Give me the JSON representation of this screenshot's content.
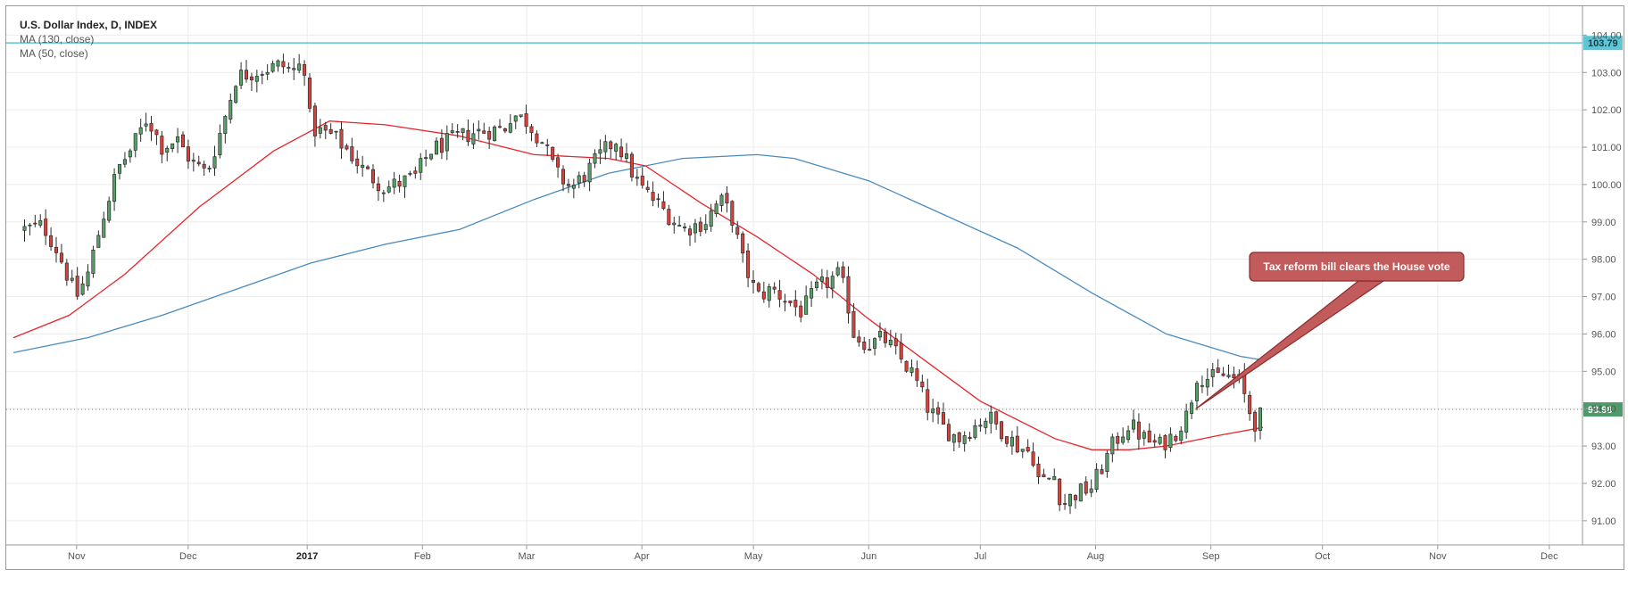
{
  "chart_data": {
    "type": "candlestick",
    "title": "U.S. Dollar Index, D, INDEX",
    "ylim": [
      90.4,
      104.2
    ],
    "y_ticks": [
      91.0,
      92.0,
      93.0,
      94.0,
      95.0,
      96.0,
      97.0,
      98.0,
      99.0,
      100.0,
      101.0,
      102.0,
      103.0,
      104.0
    ],
    "x_ticks": [
      {
        "label": "Nov",
        "day": 17,
        "bold": false
      },
      {
        "label": "Dec",
        "day": 47,
        "bold": false
      },
      {
        "label": "2017",
        "day": 79,
        "bold": true
      },
      {
        "label": "Feb",
        "day": 110,
        "bold": false
      },
      {
        "label": "Mar",
        "day": 138,
        "bold": false
      },
      {
        "label": "Apr",
        "day": 169,
        "bold": false
      },
      {
        "label": "May",
        "day": 199,
        "bold": false
      },
      {
        "label": "Jun",
        "day": 230,
        "bold": false
      },
      {
        "label": "Jul",
        "day": 260,
        "bold": false
      },
      {
        "label": "Aug",
        "day": 291,
        "bold": false
      },
      {
        "label": "Sep",
        "day": 322,
        "bold": false
      },
      {
        "label": "Oct",
        "day": 352,
        "bold": false
      },
      {
        "label": "Nov",
        "day": 383,
        "bold": false
      },
      {
        "label": "Dec",
        "day": 413,
        "bold": false
      }
    ],
    "x_range_days": [
      0,
      420
    ],
    "candle_path": [
      [
        3,
        98.8
      ],
      [
        8,
        98.9
      ],
      [
        12,
        98.2
      ],
      [
        16,
        97.2
      ],
      [
        17,
        97.0
      ],
      [
        20,
        97.6
      ],
      [
        24,
        99.1
      ],
      [
        28,
        100.4
      ],
      [
        32,
        101.0
      ],
      [
        36,
        101.8
      ],
      [
        40,
        101.0
      ],
      [
        44,
        101.2
      ],
      [
        48,
        100.6
      ],
      [
        52,
        100.3
      ],
      [
        56,
        101.5
      ],
      [
        60,
        102.9
      ],
      [
        64,
        103.0
      ],
      [
        68,
        103.1
      ],
      [
        72,
        103.2
      ],
      [
        76,
        103.0
      ],
      [
        78,
        103.4
      ],
      [
        80,
        101.5
      ],
      [
        86,
        101.3
      ],
      [
        90,
        100.9
      ],
      [
        94,
        100.4
      ],
      [
        100,
        99.9
      ],
      [
        108,
        100.2
      ],
      [
        112,
        100.9
      ],
      [
        118,
        101.2
      ],
      [
        124,
        101.4
      ],
      [
        132,
        101.5
      ],
      [
        134,
        101.9
      ],
      [
        138,
        101.7
      ],
      [
        142,
        101.2
      ],
      [
        146,
        100.3
      ],
      [
        150,
        99.9
      ],
      [
        154,
        100.3
      ],
      [
        158,
        100.8
      ],
      [
        162,
        101.2
      ],
      [
        165,
        100.6
      ],
      [
        168,
        100.0
      ],
      [
        172,
        99.6
      ],
      [
        176,
        99.2
      ],
      [
        180,
        98.8
      ],
      [
        186,
        99.0
      ],
      [
        190,
        99.6
      ],
      [
        193,
        99.2
      ],
      [
        196,
        98.0
      ],
      [
        200,
        97.0
      ],
      [
        204,
        97.2
      ],
      [
        208,
        96.9
      ],
      [
        212,
        96.6
      ],
      [
        216,
        97.2
      ],
      [
        222,
        97.6
      ],
      [
        224,
        97.0
      ],
      [
        226,
        96.0
      ],
      [
        230,
        95.7
      ],
      [
        234,
        95.9
      ],
      [
        238,
        95.4
      ],
      [
        242,
        94.9
      ],
      [
        246,
        94.0
      ],
      [
        250,
        93.5
      ],
      [
        254,
        93.2
      ],
      [
        258,
        93.5
      ],
      [
        262,
        93.8
      ],
      [
        266,
        93.4
      ],
      [
        270,
        93.0
      ],
      [
        274,
        92.8
      ],
      [
        276,
        92.0
      ],
      [
        280,
        92.2
      ],
      [
        282,
        91.4
      ],
      [
        285,
        91.7
      ],
      [
        290,
        91.9
      ],
      [
        293,
        92.5
      ],
      [
        296,
        93.1
      ],
      [
        300,
        93.6
      ],
      [
        304,
        93.2
      ],
      [
        308,
        93.0
      ],
      [
        312,
        93.3
      ],
      [
        316,
        93.9
      ],
      [
        318,
        94.9
      ],
      [
        322,
        94.8
      ],
      [
        326,
        94.9
      ],
      [
        330,
        94.7
      ],
      [
        332,
        94.0
      ],
      [
        334,
        93.6
      ],
      [
        336,
        93.9
      ]
    ],
    "ma_130": {
      "name": "MA (130, close)",
      "color": "#4a8bbf",
      "points": [
        [
          0,
          95.5
        ],
        [
          20,
          95.9
        ],
        [
          40,
          96.5
        ],
        [
          60,
          97.2
        ],
        [
          80,
          97.9
        ],
        [
          100,
          98.4
        ],
        [
          120,
          98.8
        ],
        [
          140,
          99.6
        ],
        [
          160,
          100.3
        ],
        [
          180,
          100.7
        ],
        [
          200,
          100.8
        ],
        [
          210,
          100.7
        ],
        [
          230,
          100.1
        ],
        [
          250,
          99.2
        ],
        [
          270,
          98.3
        ],
        [
          290,
          97.1
        ],
        [
          310,
          96.0
        ],
        [
          330,
          95.4
        ],
        [
          336,
          95.3
        ]
      ]
    },
    "ma_50": {
      "name": "MA (50, close)",
      "color": "#e8252b",
      "points": [
        [
          0,
          95.9
        ],
        [
          15,
          96.5
        ],
        [
          30,
          97.6
        ],
        [
          50,
          99.4
        ],
        [
          70,
          100.9
        ],
        [
          85,
          101.7
        ],
        [
          100,
          101.6
        ],
        [
          120,
          101.3
        ],
        [
          140,
          100.8
        ],
        [
          160,
          100.7
        ],
        [
          170,
          100.5
        ],
        [
          185,
          99.5
        ],
        [
          200,
          98.6
        ],
        [
          215,
          97.6
        ],
        [
          230,
          96.4
        ],
        [
          245,
          95.3
        ],
        [
          260,
          94.2
        ],
        [
          280,
          93.2
        ],
        [
          290,
          92.9
        ],
        [
          300,
          92.9
        ],
        [
          310,
          93.0
        ],
        [
          325,
          93.3
        ],
        [
          336,
          93.5
        ]
      ]
    },
    "last_price": "93.98",
    "last_price_value": 93.98,
    "resistance_level": "103.79",
    "resistance_value": 103.79,
    "annotation": {
      "text": "Tax reform bill clears the House vote",
      "target_day": 318,
      "target_value": 94.0
    }
  }
}
